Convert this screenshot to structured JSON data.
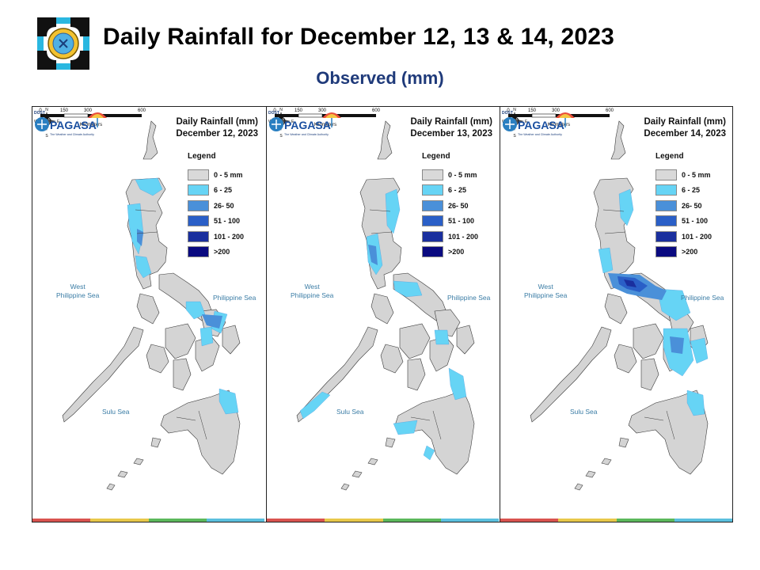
{
  "header": {
    "title": "Daily Rainfall for December 12, 13 & 14, 2023",
    "subtitle": "Observed (mm)"
  },
  "panels": [
    {
      "heading": "Daily Rainfall (mm)",
      "date": "December 12, 2023"
    },
    {
      "heading": "Daily Rainfall (mm)",
      "date": "December 13, 2023"
    },
    {
      "heading": "Daily Rainfall (mm)",
      "date": "December 14, 2023"
    }
  ],
  "legend": {
    "title": "Legend",
    "classes": [
      {
        "label": "0 - 5 mm",
        "color": "#d9d9d9"
      },
      {
        "label": "6 - 25",
        "color": "#66d4f5"
      },
      {
        "label": "26- 50",
        "color": "#4a90d9"
      },
      {
        "label": "51 - 100",
        "color": "#2a5fc7"
      },
      {
        "label": "101 - 200",
        "color": "#1a2f9e"
      },
      {
        "label": ">200",
        "color": "#0a0a80"
      }
    ]
  },
  "seas": {
    "west": "West\nPhilippine Sea",
    "east": "Philippine Sea",
    "sulu": "Sulu Sea"
  },
  "compass": {
    "n": "N",
    "s": "S",
    "e": "E",
    "w": "W"
  },
  "scale": {
    "ticks": [
      "0",
      "150",
      "300",
      "600"
    ],
    "unit": "Kilometers"
  },
  "brand": {
    "name": "PAGASA",
    "dost": "DOST",
    "tagline": "The Weather and Climate Authority",
    "logo_text": "PAGASA"
  },
  "brand_colors": [
    "#d9534f",
    "#e8c84a",
    "#5cb85c",
    "#5bc0de"
  ],
  "rain_bands": {
    "panel_1": [
      "6 - 25",
      "26- 50"
    ],
    "panel_2": [
      "6 - 25",
      "26- 50"
    ],
    "panel_3": [
      "6 - 25",
      "26- 50",
      "51 - 100",
      "101 - 200"
    ]
  }
}
